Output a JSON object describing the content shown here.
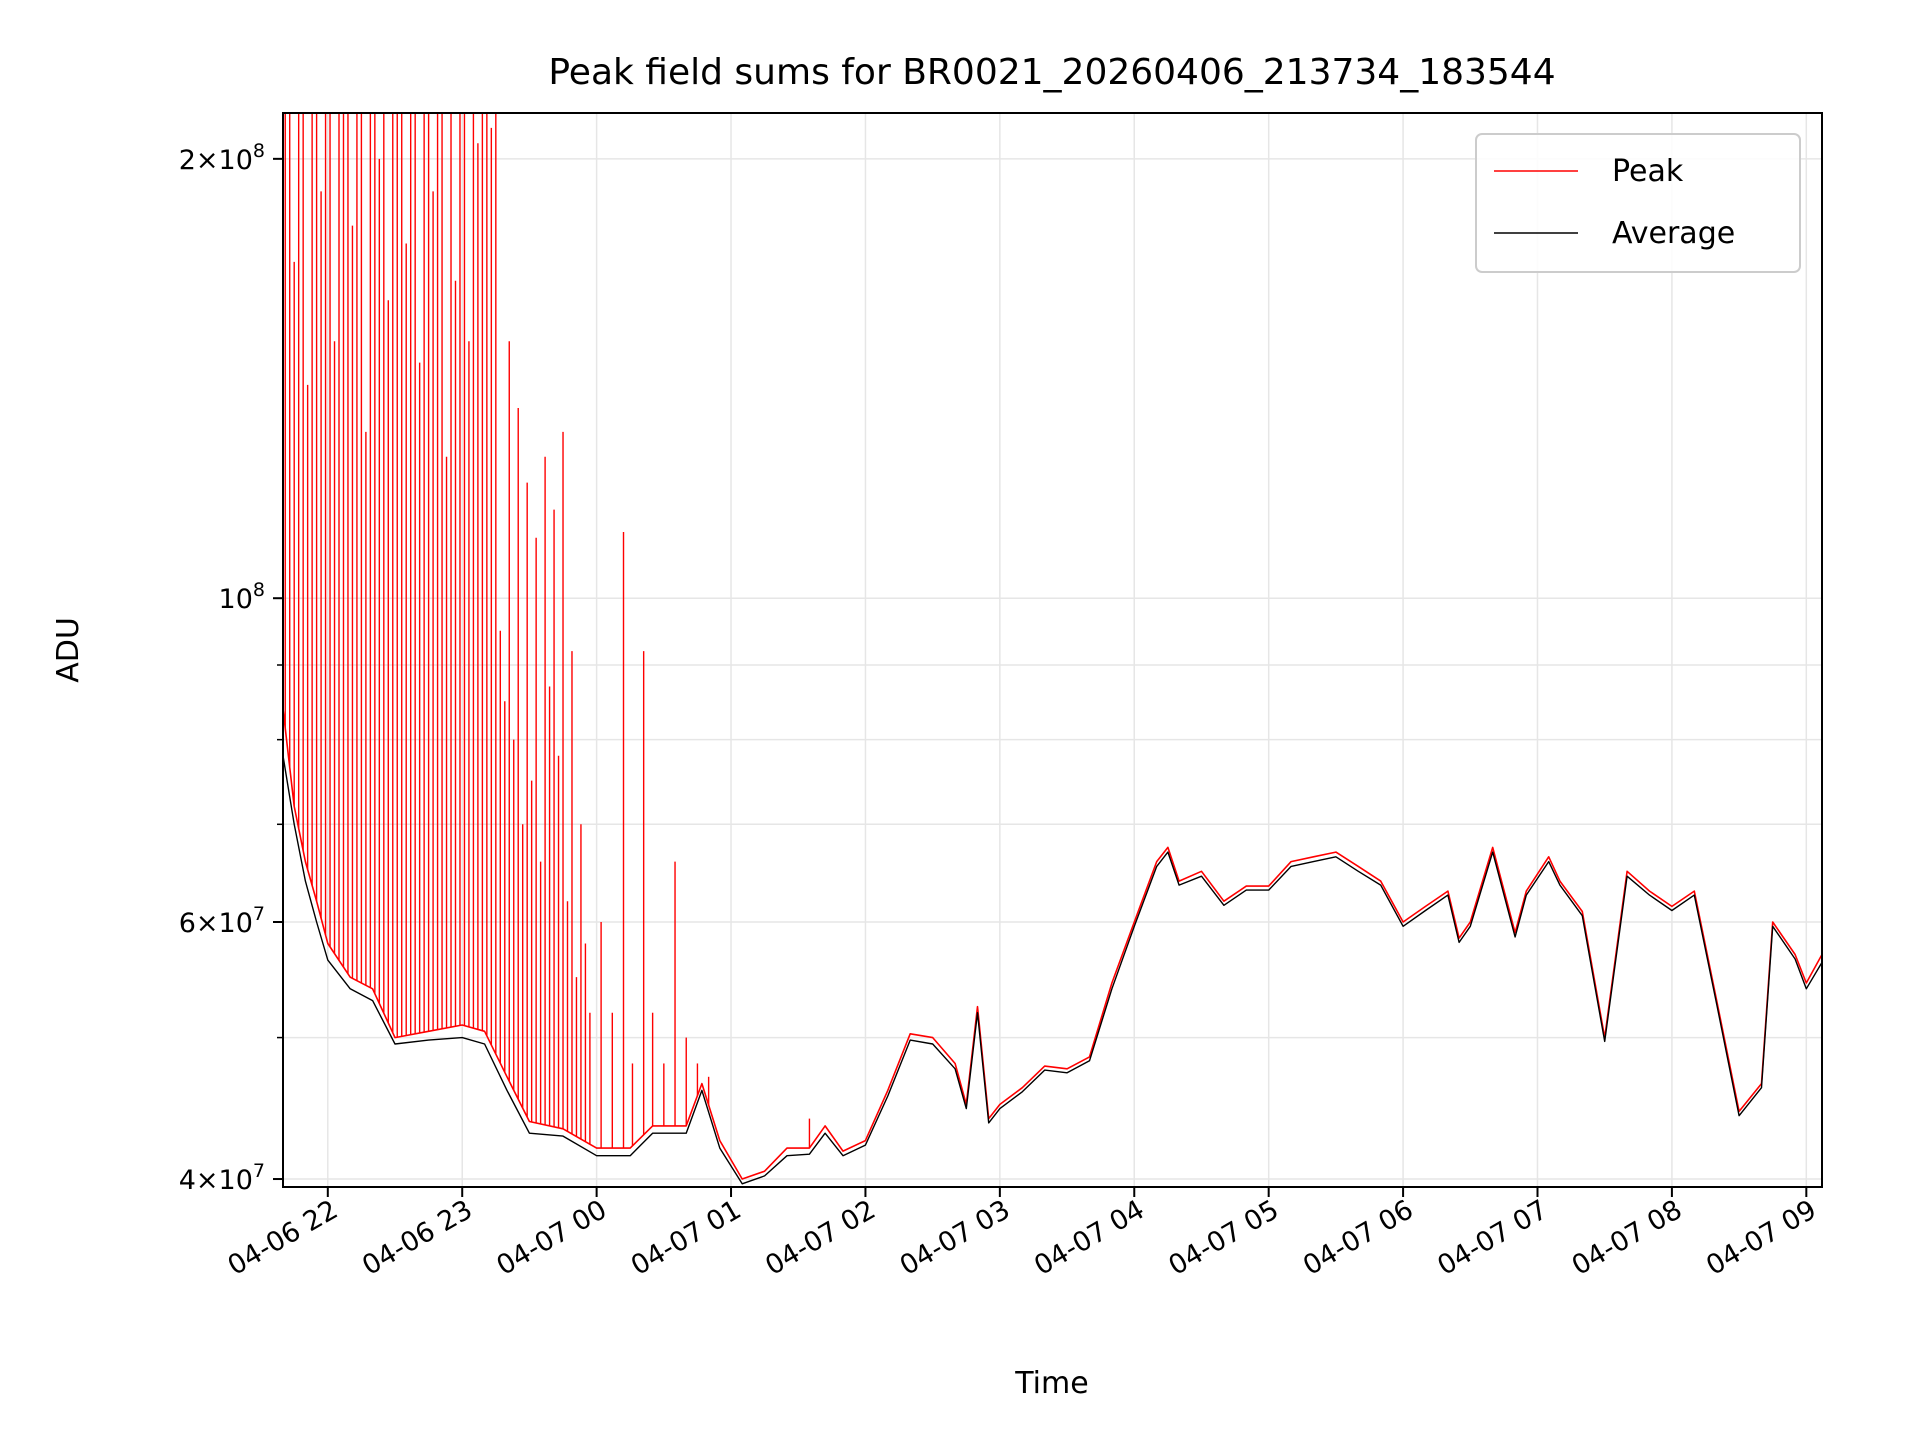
{
  "chart_data": {
    "type": "line",
    "title": "Peak field sums for BR0021_20260406_213734_183544",
    "xlabel": "Time",
    "ylabel": "ADU",
    "y_scale": "log",
    "xlim": [
      "2026-04-06 21:40",
      "2026-04-07 09:07"
    ],
    "ylim": [
      39500000,
      215000000
    ],
    "x_ticks": [
      "04-06 22",
      "04-06 23",
      "04-07 00",
      "04-07 01",
      "04-07 02",
      "04-07 03",
      "04-07 04",
      "04-07 05",
      "04-07 06",
      "04-07 07",
      "04-07 08",
      "04-07 09"
    ],
    "y_ticks": [
      {
        "value": 40000000,
        "mantissa": "4",
        "exponent": "7"
      },
      {
        "value": 60000000,
        "mantissa": "6",
        "exponent": "7"
      },
      {
        "value": 100000000,
        "mantissa": "",
        "exponent": "8"
      },
      {
        "value": 200000000,
        "mantissa": "2",
        "exponent": "8"
      }
    ],
    "grid": true,
    "legend_position": "top-right",
    "series": [
      {
        "name": "Peak",
        "color": "#ff0000",
        "points": [
          [
            "2026-04-06 21:40",
            84000000
          ],
          [
            "2026-04-06 21:45",
            72000000
          ],
          [
            "2026-04-06 21:50",
            66000000
          ],
          [
            "2026-04-06 21:55",
            62000000
          ],
          [
            "2026-04-06 22:00",
            58000000
          ],
          [
            "2026-04-06 22:10",
            55000000
          ],
          [
            "2026-04-06 22:20",
            54000000
          ],
          [
            "2026-04-06 22:30",
            50000000
          ],
          [
            "2026-04-06 22:45",
            50500000
          ],
          [
            "2026-04-06 23:00",
            51000000
          ],
          [
            "2026-04-06 23:10",
            50500000
          ],
          [
            "2026-04-06 23:20",
            47000000
          ],
          [
            "2026-04-06 23:30",
            43800000
          ],
          [
            "2026-04-06 23:45",
            43300000
          ],
          [
            "2026-04-07 00:00",
            42000000
          ],
          [
            "2026-04-07 00:15",
            42000000
          ],
          [
            "2026-04-07 00:25",
            43500000
          ],
          [
            "2026-04-07 00:40",
            43500000
          ],
          [
            "2026-04-07 00:47",
            46500000
          ],
          [
            "2026-04-07 00:55",
            42500000
          ],
          [
            "2026-04-07 01:05",
            40000000
          ],
          [
            "2026-04-07 01:15",
            40500000
          ],
          [
            "2026-04-07 01:25",
            42000000
          ],
          [
            "2026-04-07 01:35",
            42000000
          ],
          [
            "2026-04-07 01:42",
            43500000
          ],
          [
            "2026-04-07 01:50",
            41800000
          ],
          [
            "2026-04-07 02:00",
            42500000
          ],
          [
            "2026-04-07 02:10",
            46000000
          ],
          [
            "2026-04-07 02:20",
            50300000
          ],
          [
            "2026-04-07 02:30",
            50000000
          ],
          [
            "2026-04-07 02:40",
            48000000
          ],
          [
            "2026-04-07 02:45",
            45000000
          ],
          [
            "2026-04-07 02:50",
            52500000
          ],
          [
            "2026-04-07 02:55",
            44000000
          ],
          [
            "2026-04-07 03:00",
            45000000
          ],
          [
            "2026-04-07 03:10",
            46200000
          ],
          [
            "2026-04-07 03:20",
            47800000
          ],
          [
            "2026-04-07 03:30",
            47600000
          ],
          [
            "2026-04-07 03:40",
            48500000
          ],
          [
            "2026-04-07 03:50",
            54500000
          ],
          [
            "2026-04-07 04:00",
            60000000
          ],
          [
            "2026-04-07 04:10",
            66000000
          ],
          [
            "2026-04-07 04:15",
            67500000
          ],
          [
            "2026-04-07 04:20",
            64000000
          ],
          [
            "2026-04-07 04:30",
            65000000
          ],
          [
            "2026-04-07 04:40",
            62000000
          ],
          [
            "2026-04-07 04:50",
            63500000
          ],
          [
            "2026-04-07 05:00",
            63500000
          ],
          [
            "2026-04-07 05:10",
            66000000
          ],
          [
            "2026-04-07 05:20",
            66500000
          ],
          [
            "2026-04-07 05:30",
            67000000
          ],
          [
            "2026-04-07 05:40",
            65500000
          ],
          [
            "2026-04-07 05:50",
            64000000
          ],
          [
            "2026-04-07 06:00",
            60000000
          ],
          [
            "2026-04-07 06:10",
            61500000
          ],
          [
            "2026-04-07 06:20",
            63000000
          ],
          [
            "2026-04-07 06:25",
            58500000
          ],
          [
            "2026-04-07 06:30",
            60000000
          ],
          [
            "2026-04-07 06:40",
            67500000
          ],
          [
            "2026-04-07 06:50",
            59000000
          ],
          [
            "2026-04-07 06:55",
            63000000
          ],
          [
            "2026-04-07 07:05",
            66500000
          ],
          [
            "2026-04-07 07:10",
            64000000
          ],
          [
            "2026-04-07 07:20",
            61000000
          ],
          [
            "2026-04-07 07:30",
            50000000
          ],
          [
            "2026-04-07 07:40",
            65000000
          ],
          [
            "2026-04-07 07:50",
            63000000
          ],
          [
            "2026-04-07 08:00",
            61500000
          ],
          [
            "2026-04-07 08:10",
            63000000
          ],
          [
            "2026-04-07 08:20",
            53000000
          ],
          [
            "2026-04-07 08:30",
            44500000
          ],
          [
            "2026-04-07 08:40",
            46500000
          ],
          [
            "2026-04-07 08:45",
            60000000
          ],
          [
            "2026-04-07 08:55",
            57000000
          ],
          [
            "2026-04-07 09:00",
            54500000
          ],
          [
            "2026-04-07 09:07",
            57000000
          ]
        ]
      },
      {
        "name": "Average",
        "color": "#000000",
        "points": [
          [
            "2026-04-06 21:40",
            78000000
          ],
          [
            "2026-04-06 21:45",
            70000000
          ],
          [
            "2026-04-06 21:50",
            64000000
          ],
          [
            "2026-04-06 21:55",
            60000000
          ],
          [
            "2026-04-06 22:00",
            56500000
          ],
          [
            "2026-04-06 22:10",
            54000000
          ],
          [
            "2026-04-06 22:20",
            53000000
          ],
          [
            "2026-04-06 22:30",
            49500000
          ],
          [
            "2026-04-06 22:45",
            49800000
          ],
          [
            "2026-04-06 23:00",
            50000000
          ],
          [
            "2026-04-06 23:10",
            49500000
          ],
          [
            "2026-04-06 23:20",
            46000000
          ],
          [
            "2026-04-06 23:30",
            43000000
          ],
          [
            "2026-04-06 23:45",
            42800000
          ],
          [
            "2026-04-07 00:00",
            41500000
          ],
          [
            "2026-04-07 00:15",
            41500000
          ],
          [
            "2026-04-07 00:25",
            43000000
          ],
          [
            "2026-04-07 00:40",
            43000000
          ],
          [
            "2026-04-07 00:47",
            46000000
          ],
          [
            "2026-04-07 00:55",
            42000000
          ],
          [
            "2026-04-07 01:05",
            39700000
          ],
          [
            "2026-04-07 01:15",
            40200000
          ],
          [
            "2026-04-07 01:25",
            41500000
          ],
          [
            "2026-04-07 01:35",
            41600000
          ],
          [
            "2026-04-07 01:42",
            43000000
          ],
          [
            "2026-04-07 01:50",
            41500000
          ],
          [
            "2026-04-07 02:00",
            42200000
          ],
          [
            "2026-04-07 02:10",
            45600000
          ],
          [
            "2026-04-07 02:20",
            49800000
          ],
          [
            "2026-04-07 02:30",
            49500000
          ],
          [
            "2026-04-07 02:40",
            47600000
          ],
          [
            "2026-04-07 02:45",
            44700000
          ],
          [
            "2026-04-07 02:50",
            52000000
          ],
          [
            "2026-04-07 02:55",
            43700000
          ],
          [
            "2026-04-07 03:00",
            44700000
          ],
          [
            "2026-04-07 03:10",
            45900000
          ],
          [
            "2026-04-07 03:20",
            47500000
          ],
          [
            "2026-04-07 03:30",
            47300000
          ],
          [
            "2026-04-07 03:40",
            48200000
          ],
          [
            "2026-04-07 03:50",
            54000000
          ],
          [
            "2026-04-07 04:00",
            59600000
          ],
          [
            "2026-04-07 04:10",
            65500000
          ],
          [
            "2026-04-07 04:15",
            67000000
          ],
          [
            "2026-04-07 04:20",
            63600000
          ],
          [
            "2026-04-07 04:30",
            64500000
          ],
          [
            "2026-04-07 04:40",
            61600000
          ],
          [
            "2026-04-07 04:50",
            63100000
          ],
          [
            "2026-04-07 05:00",
            63100000
          ],
          [
            "2026-04-07 05:10",
            65500000
          ],
          [
            "2026-04-07 05:20",
            66000000
          ],
          [
            "2026-04-07 05:30",
            66500000
          ],
          [
            "2026-04-07 05:40",
            65000000
          ],
          [
            "2026-04-07 05:50",
            63600000
          ],
          [
            "2026-04-07 06:00",
            59600000
          ],
          [
            "2026-04-07 06:10",
            61100000
          ],
          [
            "2026-04-07 06:20",
            62600000
          ],
          [
            "2026-04-07 06:25",
            58100000
          ],
          [
            "2026-04-07 06:30",
            59600000
          ],
          [
            "2026-04-07 06:40",
            67000000
          ],
          [
            "2026-04-07 06:50",
            58600000
          ],
          [
            "2026-04-07 06:55",
            62600000
          ],
          [
            "2026-04-07 07:05",
            66000000
          ],
          [
            "2026-04-07 07:10",
            63600000
          ],
          [
            "2026-04-07 07:20",
            60600000
          ],
          [
            "2026-04-07 07:30",
            49700000
          ],
          [
            "2026-04-07 07:40",
            64500000
          ],
          [
            "2026-04-07 07:50",
            62600000
          ],
          [
            "2026-04-07 08:00",
            61100000
          ],
          [
            "2026-04-07 08:10",
            62600000
          ],
          [
            "2026-04-07 08:20",
            52700000
          ],
          [
            "2026-04-07 08:30",
            44200000
          ],
          [
            "2026-04-07 08:40",
            46200000
          ],
          [
            "2026-04-07 08:45",
            59600000
          ],
          [
            "2026-04-07 08:55",
            56600000
          ],
          [
            "2026-04-07 09:00",
            54000000
          ],
          [
            "2026-04-07 09:07",
            56300000
          ]
        ]
      }
    ],
    "peak_spikes": [
      [
        "2026-04-06 21:41",
        215000000
      ],
      [
        "2026-04-06 21:43",
        215000000
      ],
      [
        "2026-04-06 21:45",
        170000000
      ],
      [
        "2026-04-06 21:47",
        215000000
      ],
      [
        "2026-04-06 21:49",
        215000000
      ],
      [
        "2026-04-06 21:51",
        140000000
      ],
      [
        "2026-04-06 21:53",
        215000000
      ],
      [
        "2026-04-06 21:55",
        215000000
      ],
      [
        "2026-04-06 21:57",
        190000000
      ],
      [
        "2026-04-06 21:59",
        215000000
      ],
      [
        "2026-04-06 22:01",
        215000000
      ],
      [
        "2026-04-06 22:03",
        150000000
      ],
      [
        "2026-04-06 22:05",
        215000000
      ],
      [
        "2026-04-06 22:07",
        215000000
      ],
      [
        "2026-04-06 22:09",
        215000000
      ],
      [
        "2026-04-06 22:11",
        180000000
      ],
      [
        "2026-04-06 22:13",
        215000000
      ],
      [
        "2026-04-06 22:15",
        215000000
      ],
      [
        "2026-04-06 22:17",
        130000000
      ],
      [
        "2026-04-06 22:19",
        215000000
      ],
      [
        "2026-04-06 22:21",
        215000000
      ],
      [
        "2026-04-06 22:23",
        200000000
      ],
      [
        "2026-04-06 22:25",
        215000000
      ],
      [
        "2026-04-06 22:27",
        160000000
      ],
      [
        "2026-04-06 22:29",
        215000000
      ],
      [
        "2026-04-06 22:31",
        215000000
      ],
      [
        "2026-04-06 22:33",
        215000000
      ],
      [
        "2026-04-06 22:35",
        175000000
      ],
      [
        "2026-04-06 22:37",
        215000000
      ],
      [
        "2026-04-06 22:39",
        215000000
      ],
      [
        "2026-04-06 22:41",
        145000000
      ],
      [
        "2026-04-06 22:43",
        215000000
      ],
      [
        "2026-04-06 22:45",
        215000000
      ],
      [
        "2026-04-06 22:47",
        190000000
      ],
      [
        "2026-04-06 22:49",
        215000000
      ],
      [
        "2026-04-06 22:51",
        215000000
      ],
      [
        "2026-04-06 22:53",
        125000000
      ],
      [
        "2026-04-06 22:55",
        215000000
      ],
      [
        "2026-04-06 22:57",
        165000000
      ],
      [
        "2026-04-06 22:59",
        215000000
      ],
      [
        "2026-04-06 23:01",
        215000000
      ],
      [
        "2026-04-06 23:03",
        150000000
      ],
      [
        "2026-04-06 23:05",
        215000000
      ],
      [
        "2026-04-06 23:07",
        205000000
      ],
      [
        "2026-04-06 23:09",
        215000000
      ],
      [
        "2026-04-06 23:11",
        215000000
      ],
      [
        "2026-04-06 23:13",
        210000000
      ],
      [
        "2026-04-06 23:15",
        215000000
      ],
      [
        "2026-04-06 23:17",
        95000000
      ],
      [
        "2026-04-06 23:19",
        85000000
      ],
      [
        "2026-04-06 23:21",
        150000000
      ],
      [
        "2026-04-06 23:23",
        80000000
      ],
      [
        "2026-04-06 23:25",
        135000000
      ],
      [
        "2026-04-06 23:27",
        70000000
      ],
      [
        "2026-04-06 23:29",
        120000000
      ],
      [
        "2026-04-06 23:31",
        75000000
      ],
      [
        "2026-04-06 23:33",
        110000000
      ],
      [
        "2026-04-06 23:35",
        66000000
      ],
      [
        "2026-04-06 23:37",
        125000000
      ],
      [
        "2026-04-06 23:39",
        87000000
      ],
      [
        "2026-04-06 23:41",
        115000000
      ],
      [
        "2026-04-06 23:43",
        78000000
      ],
      [
        "2026-04-06 23:45",
        130000000
      ],
      [
        "2026-04-06 23:47",
        62000000
      ],
      [
        "2026-04-06 23:49",
        92000000
      ],
      [
        "2026-04-06 23:51",
        55000000
      ],
      [
        "2026-04-06 23:53",
        70000000
      ],
      [
        "2026-04-06 23:55",
        58000000
      ],
      [
        "2026-04-06 23:57",
        52000000
      ],
      [
        "2026-04-07 00:02",
        60000000
      ],
      [
        "2026-04-07 00:07",
        52000000
      ],
      [
        "2026-04-07 00:12",
        111000000
      ],
      [
        "2026-04-07 00:16",
        48000000
      ],
      [
        "2026-04-07 00:21",
        92000000
      ],
      [
        "2026-04-07 00:25",
        52000000
      ],
      [
        "2026-04-07 00:30",
        48000000
      ],
      [
        "2026-04-07 00:35",
        66000000
      ],
      [
        "2026-04-07 00:40",
        50000000
      ],
      [
        "2026-04-07 00:45",
        48000000
      ],
      [
        "2026-04-07 00:50",
        47000000
      ],
      [
        "2026-04-07 01:35",
        44000000
      ]
    ]
  }
}
